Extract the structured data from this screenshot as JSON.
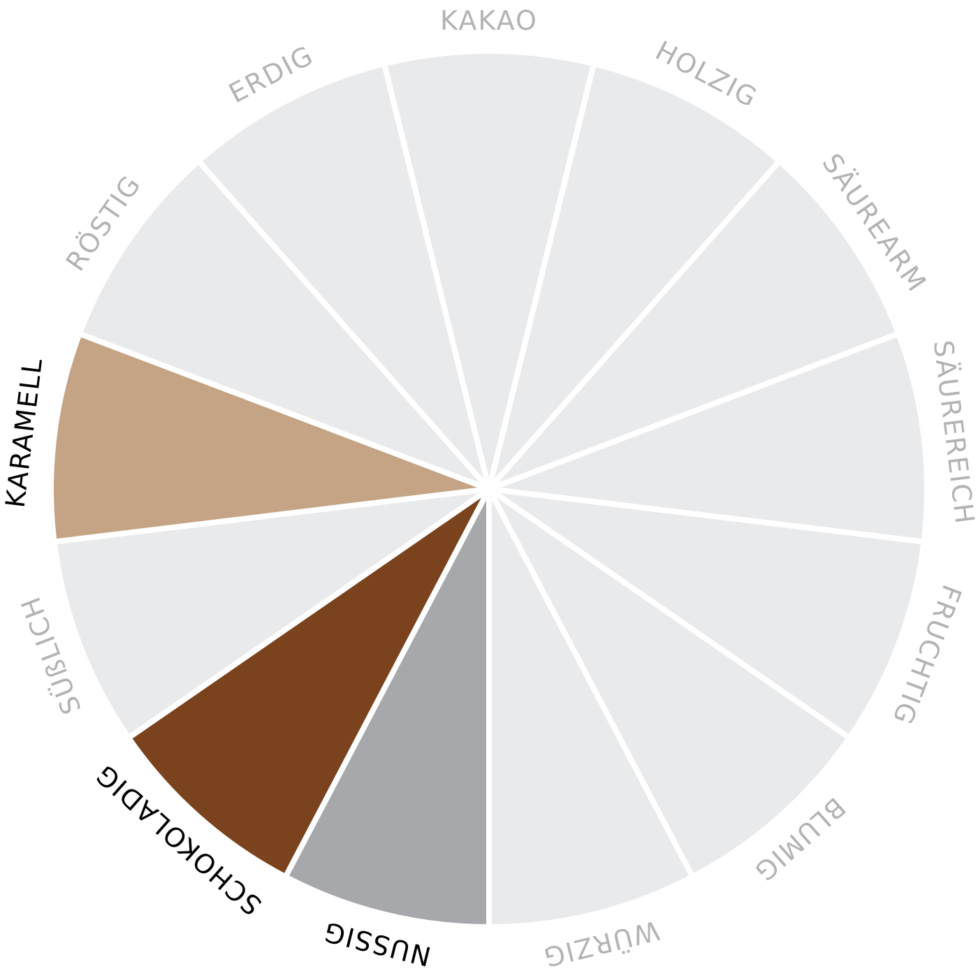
{
  "wheel": {
    "segments": [
      {
        "label": "KAKAO",
        "color": "#e9eaec",
        "label_color": "#b3b3b3"
      },
      {
        "label": "HOLZIG",
        "color": "#e9eaec",
        "label_color": "#b3b3b3"
      },
      {
        "label": "SÄUREARM",
        "color": "#e9eaec",
        "label_color": "#b3b3b3"
      },
      {
        "label": "SÄUREREICH",
        "color": "#e9eaec",
        "label_color": "#b3b3b3"
      },
      {
        "label": "FRUCHTIG",
        "color": "#e9eaec",
        "label_color": "#b3b3b3"
      },
      {
        "label": "BLUMIG",
        "color": "#e9eaec",
        "label_color": "#b3b3b3"
      },
      {
        "label": "WÜRZIG",
        "color": "#e9eaec",
        "label_color": "#b3b3b3"
      },
      {
        "label": "NUSSIG",
        "color": "#a7a8ac",
        "label_color": "#000000"
      },
      {
        "label": "SCHOKOLADIG",
        "color": "#7a421d",
        "label_color": "#000000"
      },
      {
        "label": "SÜßLICH",
        "color": "#e9eaec",
        "label_color": "#b3b3b3"
      },
      {
        "label": "KARAMELL",
        "color": "#c4a484",
        "label_color": "#000000"
      },
      {
        "label": "RÖSTIG",
        "color": "#e9eaec",
        "label_color": "#b3b3b3"
      },
      {
        "label": "ERDIG",
        "color": "#e9eaec",
        "label_color": "#b3b3b3"
      }
    ]
  }
}
